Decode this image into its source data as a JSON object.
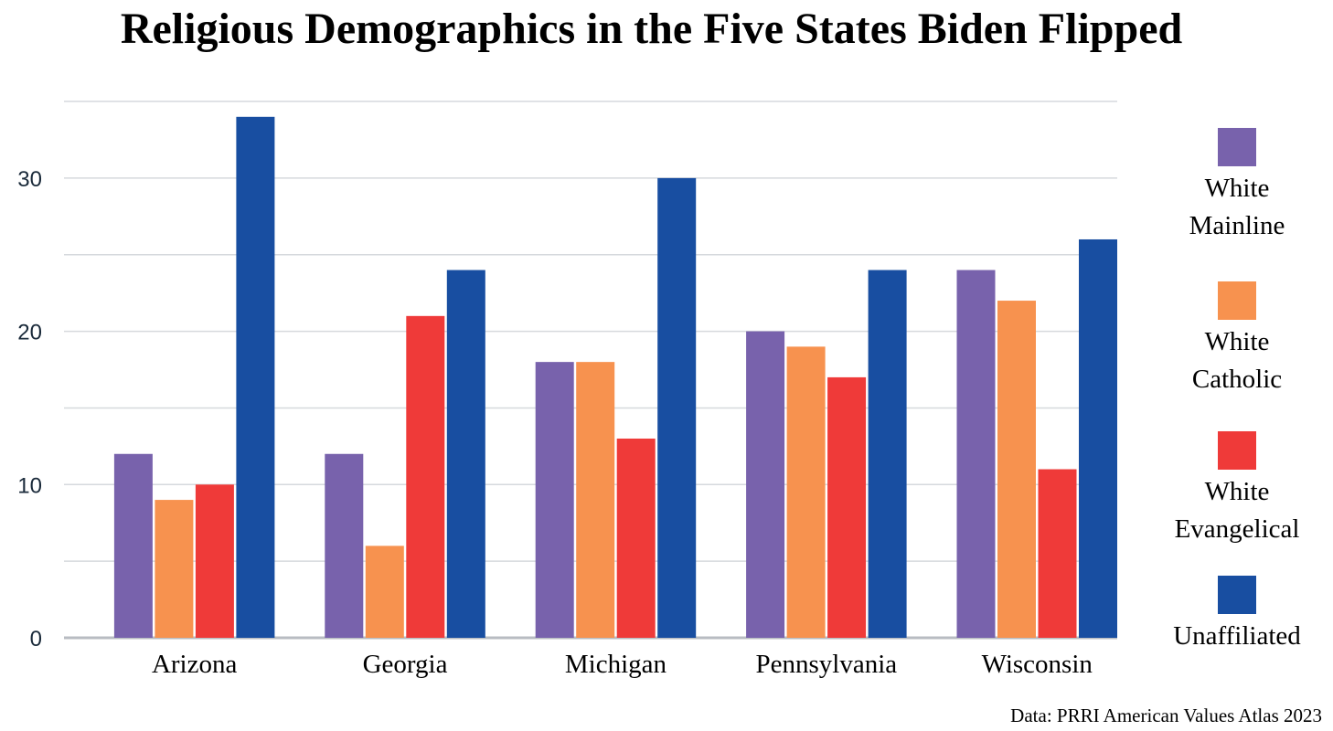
{
  "chart_data": {
    "type": "bar",
    "title": "Religious Demographics in the Five States Biden Flipped",
    "xlabel": "",
    "ylabel": "",
    "categories": [
      "Arizona",
      "Georgia",
      "Michigan",
      "Pennsylvania",
      "Wisconsin"
    ],
    "series": [
      {
        "name": "White Mainline",
        "color": "#7862ac",
        "values": [
          12,
          12,
          18,
          20,
          24
        ]
      },
      {
        "name": "White Catholic",
        "color": "#f7924f",
        "values": [
          9,
          6,
          18,
          19,
          22
        ]
      },
      {
        "name": "White Evangelical",
        "color": "#ef3a39",
        "values": [
          10,
          21,
          13,
          17,
          11
        ]
      },
      {
        "name": "Unaffiliated",
        "color": "#184ea1",
        "values": [
          34,
          24,
          30,
          24,
          26
        ]
      }
    ],
    "ylim": [
      0,
      35
    ],
    "yticks": [
      0,
      10,
      20,
      30
    ],
    "minor_gridlines": [
      5,
      15,
      25,
      35
    ],
    "grid": true,
    "legend_position": "right"
  },
  "source_note": "Data: PRRI American Values Atlas 2023"
}
